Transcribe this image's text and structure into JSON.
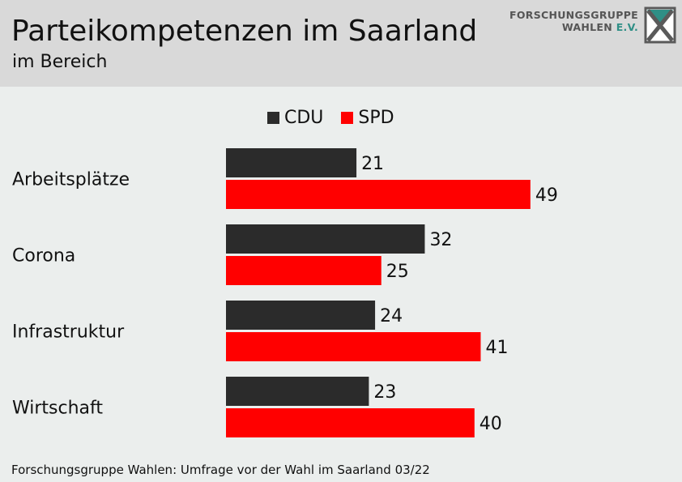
{
  "header": {
    "title": "Parteikompetenzen im Saarland",
    "subtitle": "im Bereich"
  },
  "logo": {
    "line1": "FORSCHUNGSGRUPPE",
    "line2_a": "WAHLEN ",
    "line2_b": "E.V."
  },
  "footer": {
    "source": "Forschungsgruppe Wahlen: Umfrage vor der Wahl im Saarland 03/22"
  },
  "chart_data": {
    "type": "bar",
    "orientation": "horizontal",
    "categories": [
      "Arbeitsplätze",
      "Corona",
      "Infrastruktur",
      "Wirtschaft"
    ],
    "series": [
      {
        "name": "CDU",
        "color": "#2b2b2b",
        "values": [
          21,
          32,
          24,
          23
        ]
      },
      {
        "name": "SPD",
        "color": "#ff0000",
        "values": [
          49,
          25,
          41,
          40
        ]
      }
    ],
    "legend_position": "top",
    "grid": false
  }
}
